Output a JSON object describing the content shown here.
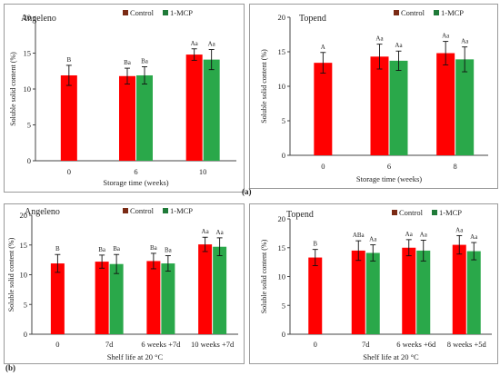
{
  "figure_labels": {
    "a": "(a)",
    "b": "(b)"
  },
  "colors": {
    "control": "#ff0000",
    "control_dark": "#7a2a14",
    "mcp": "#2aa84a",
    "mcp_dark": "#1f7a38",
    "axis": "#444444"
  },
  "legend_labels": {
    "control": "Control",
    "mcp": "1-MCP"
  },
  "chart_data": [
    {
      "id": "p1",
      "type": "bar",
      "title": "Angeleno",
      "xlabel": "Storage time (weeks)",
      "ylabel": "Soluble solid content (%)",
      "ylim": [
        0,
        20
      ],
      "yticks": [
        0,
        5,
        10,
        15,
        20
      ],
      "legend_position": "top-right",
      "categories": [
        "0",
        "6",
        "10"
      ],
      "series": [
        {
          "name": "Control",
          "values": [
            11.9,
            11.8,
            14.8
          ],
          "errors": [
            1.4,
            1.1,
            0.8
          ],
          "labels": [
            "B",
            "Ba",
            "Aa"
          ]
        },
        {
          "name": "1-MCP",
          "values": [
            null,
            11.9,
            14.1
          ],
          "errors": [
            null,
            1.2,
            1.4
          ],
          "labels": [
            null,
            "Ba",
            "Aa"
          ]
        }
      ]
    },
    {
      "id": "p2",
      "type": "bar",
      "title": "Topend",
      "xlabel": "Storage time (weeks)",
      "ylabel": "Soluble solid content (%)",
      "ylim": [
        0,
        20
      ],
      "yticks": [
        0,
        5,
        10,
        15,
        20
      ],
      "legend_position": "top-right",
      "categories": [
        "0",
        "6",
        "8"
      ],
      "series": [
        {
          "name": "Control",
          "values": [
            13.4,
            14.3,
            14.8
          ],
          "errors": [
            1.5,
            1.8,
            1.7
          ],
          "labels": [
            "A",
            "Aa",
            "Aa"
          ]
        },
        {
          "name": "1-MCP",
          "values": [
            null,
            13.7,
            13.9
          ],
          "errors": [
            null,
            1.4,
            1.8
          ],
          "labels": [
            null,
            "Aa",
            "Aa"
          ]
        }
      ]
    },
    {
      "id": "p3",
      "type": "bar",
      "title": "Angeleno",
      "xlabel": "Shelf life at 20 °C",
      "ylabel": "Soluble solid content (%)",
      "ylim": [
        0,
        20
      ],
      "yticks": [
        0,
        5,
        10,
        15,
        20
      ],
      "legend_position": "top-right",
      "categories": [
        "0",
        "7d",
        "6 weeks +7d",
        "10 weeks +7d"
      ],
      "series": [
        {
          "name": "Control",
          "values": [
            11.9,
            12.2,
            12.3,
            15.1
          ],
          "errors": [
            1.5,
            1.1,
            1.3,
            1.2
          ],
          "labels": [
            "B",
            "Ba",
            "Ba",
            "Aa"
          ]
        },
        {
          "name": "1-MCP",
          "values": [
            null,
            11.8,
            11.9,
            14.7
          ],
          "errors": [
            null,
            1.6,
            1.3,
            1.5
          ],
          "labels": [
            null,
            "Ba",
            "Ba",
            "Aa"
          ]
        }
      ]
    },
    {
      "id": "p4",
      "type": "bar",
      "title": "Topend",
      "xlabel": "Shelf life at 20 °C",
      "ylabel": "Soluble solid content (%)",
      "ylim": [
        0,
        20
      ],
      "yticks": [
        0,
        5,
        10,
        15,
        20
      ],
      "legend_position": "top-right",
      "categories": [
        "0",
        "7d",
        "6 weeks +6d",
        "8 weeks +5d"
      ],
      "series": [
        {
          "name": "Control",
          "values": [
            13.3,
            14.5,
            15.0,
            15.5
          ],
          "errors": [
            1.4,
            1.7,
            1.4,
            1.6
          ],
          "labels": [
            "B",
            "ABa",
            "Aa",
            "Aa"
          ]
        },
        {
          "name": "1-MCP",
          "values": [
            null,
            14.1,
            14.5,
            14.4
          ],
          "errors": [
            null,
            1.4,
            1.8,
            1.5
          ],
          "labels": [
            null,
            "Aa",
            "Aa",
            "Aa"
          ]
        }
      ]
    }
  ]
}
